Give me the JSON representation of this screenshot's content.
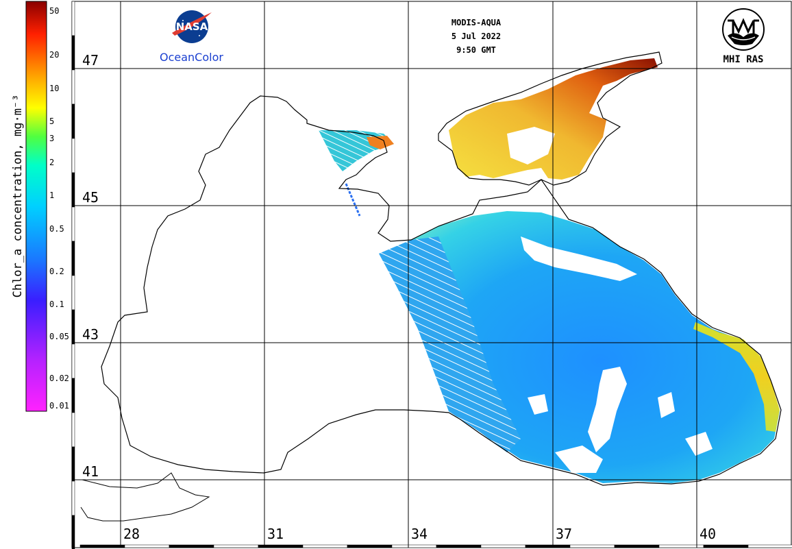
{
  "header": {
    "sensor": "MODIS-AQUA",
    "date": "5 Jul 2022",
    "time": "9:50 GMT"
  },
  "logos": {
    "nasa_text": "NASA",
    "oceancolor": "OceanColor",
    "mhi": "MHI RAS"
  },
  "colorbar": {
    "title": "Chlor_a concentration, mg·m⁻³",
    "ticks": [
      "50",
      "20",
      "10",
      "5",
      "3",
      "2",
      "1",
      "0.5",
      "0.2",
      "0.1",
      "0.05",
      "0.02",
      "0.01"
    ],
    "scale": "log",
    "colors": [
      "#ff22ff",
      "#9b22ff",
      "#2222ff",
      "#00c8ff",
      "#00ffd0",
      "#40ff40",
      "#ffff00",
      "#ffa000",
      "#ff2000",
      "#7a0000"
    ]
  },
  "grid": {
    "latitudes": [
      "47",
      "45",
      "43",
      "41"
    ],
    "longitudes": [
      "28",
      "31",
      "34",
      "37",
      "40"
    ]
  }
}
